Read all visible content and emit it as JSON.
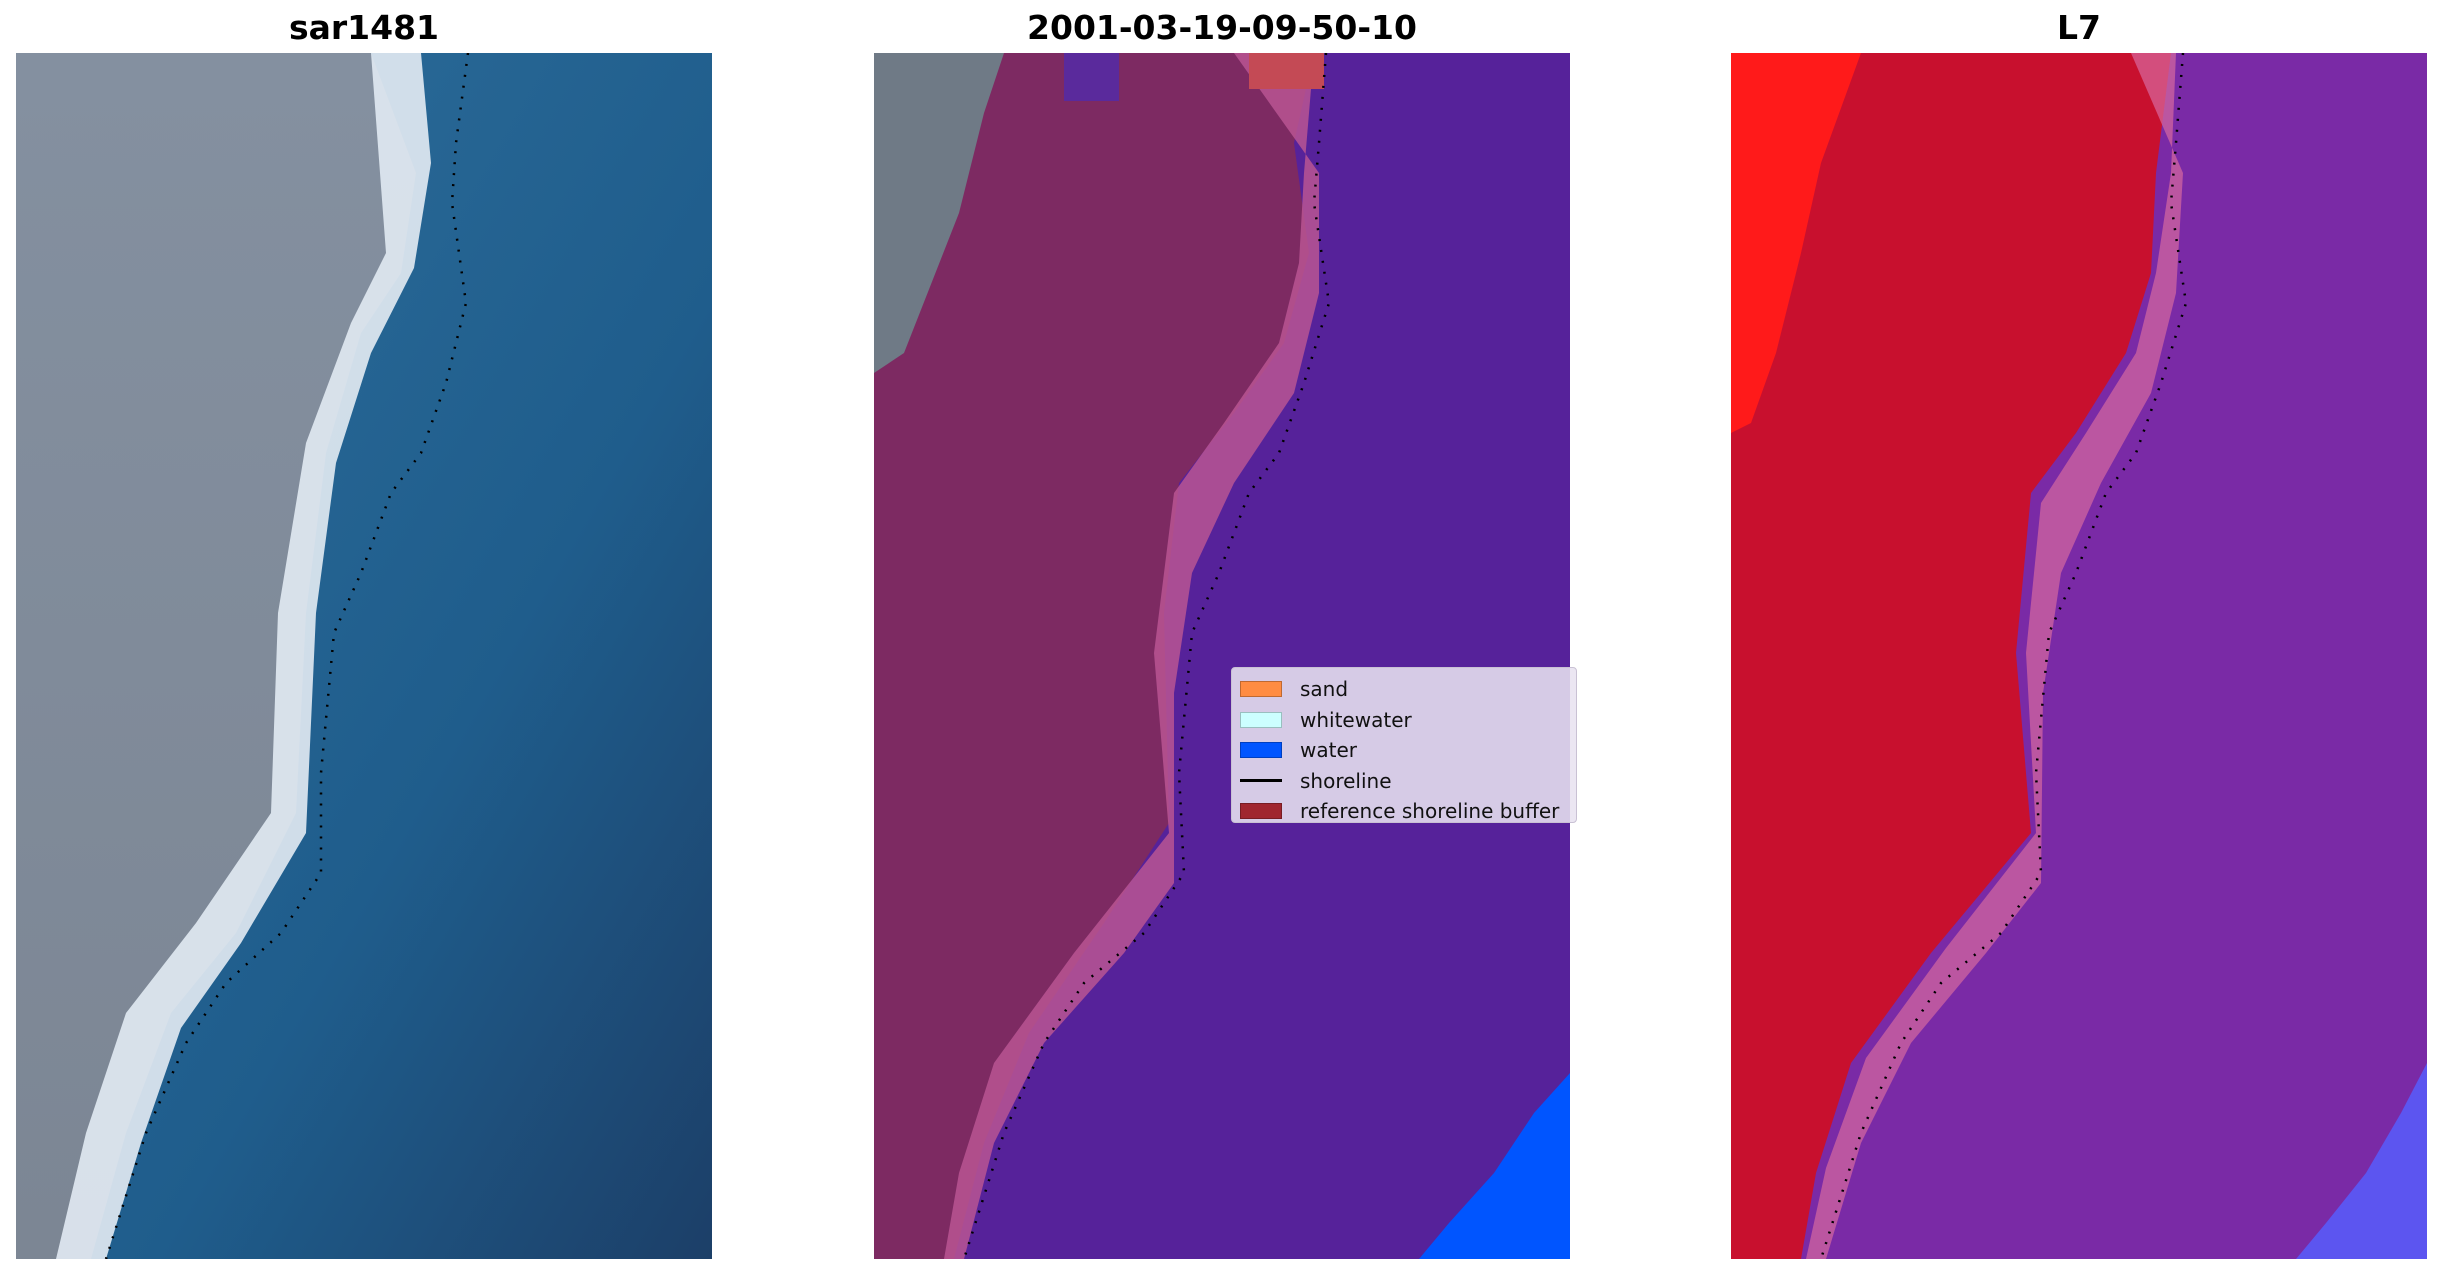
{
  "panels": [
    {
      "title": "sar1481",
      "kind": "rgb-image"
    },
    {
      "title": "2001-03-19-09-50-10",
      "kind": "classified-image"
    },
    {
      "title": "L7",
      "kind": "index-image"
    }
  ],
  "legend": {
    "items": [
      {
        "label": "sand",
        "color": "#ff8c42",
        "type": "patch"
      },
      {
        "label": "whitewater",
        "color": "#ccffff",
        "type": "patch"
      },
      {
        "label": "water",
        "color": "#0055ff",
        "type": "patch"
      },
      {
        "label": "shoreline",
        "color": "#000000",
        "type": "line"
      },
      {
        "label": "reference shoreline buffer",
        "color": "#a0262f",
        "type": "patch"
      }
    ]
  },
  "colors": {
    "land_gray": "#7f8a96",
    "whitewater": "#e6eef6",
    "ocean_blue": "#2a6a9a",
    "classified_land": "#7d2a62",
    "classified_water": "#56229a",
    "classified_pink": "#b85593",
    "index_red": "#c8102e",
    "index_bright_red": "#ff1a1a",
    "index_purple": "#7a2aa6"
  }
}
